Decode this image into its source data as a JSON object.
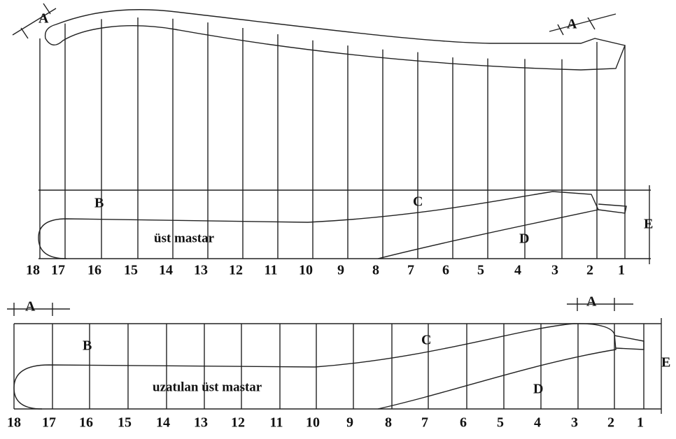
{
  "top": {
    "a_left": "A",
    "a_right": "A",
    "b": "B",
    "c": "C",
    "d": "D",
    "e": "E",
    "caption": "üst mastar",
    "stations": [
      "18",
      "17",
      "16",
      "15",
      "14",
      "13",
      "12",
      "11",
      "10",
      "9",
      "8",
      "7",
      "6",
      "5",
      "4",
      "3",
      "2",
      "1"
    ]
  },
  "bottom": {
    "a_left": "A",
    "a_right": "A",
    "b": "B",
    "c": "C",
    "d": "D",
    "e": "E",
    "caption": "uzatılan üst mastar",
    "stations": [
      "18",
      "17",
      "16",
      "15",
      "14",
      "13",
      "12",
      "11",
      "10",
      "9",
      "8",
      "7",
      "6",
      "5",
      "4",
      "3",
      "2",
      "1"
    ]
  }
}
